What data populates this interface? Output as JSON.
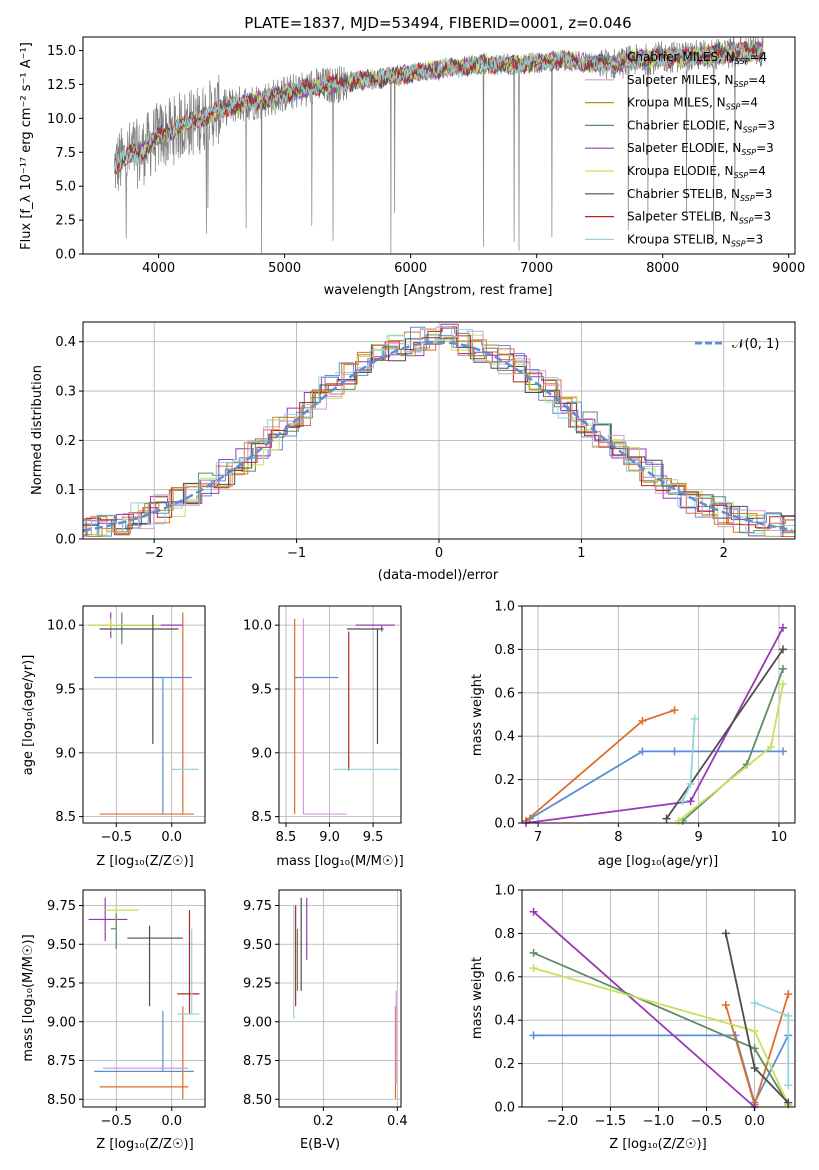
{
  "colors": {
    "grid": "#b0b0b0",
    "data_spectrum": "#808080",
    "palette": [
      "#5b8ed9",
      "#dd6f2c",
      "#9c38b8",
      "#5f8c62",
      "#c7e15a",
      "#4d4d4d",
      "#b82424",
      "#d89ad9",
      "#92d6da",
      "#c48a2a"
    ]
  },
  "chart_data": [
    {
      "id": "spectrum",
      "type": "line",
      "title": "PLATE=1837, MJD=53494, FIBERID=0001, z=0.046",
      "xlabel": "wavelength [Angstrom, rest frame]",
      "ylabel": "Flux [f_λ 10⁻¹⁷ erg cm⁻² s⁻¹ A⁻¹]",
      "xlim": [
        3400,
        9050
      ],
      "ylim": [
        0,
        16
      ],
      "xticks": [
        "4000",
        "5000",
        "6000",
        "7000",
        "8000",
        "9000"
      ],
      "yticks": [
        "0.0",
        "2.5",
        "5.0",
        "7.5",
        "10.0",
        "12.5",
        "15.0"
      ],
      "legend_position": "right",
      "grid": false,
      "legend": [
        {
          "label": "Chabrier MILES, N_SSP=4",
          "color": "#5b8ed9"
        },
        {
          "label": "Salpeter MILES, N_SSP=4",
          "color": "#d89ad9"
        },
        {
          "label": "Kroupa MILES, N_SSP=4",
          "color": "#c48a2a"
        },
        {
          "label": "Chabrier ELODIE, N_SSP=3",
          "color": "#5f8c62"
        },
        {
          "label": "Salpeter ELODIE, N_SSP=3",
          "color": "#9c38b8"
        },
        {
          "label": "Kroupa ELODIE, N_SSP=4",
          "color": "#c7e15a"
        },
        {
          "label": "Chabrier STELIB, N_SSP=3",
          "color": "#4d4d4d"
        },
        {
          "label": "Salpeter STELIB, N_SSP=3",
          "color": "#b82424"
        },
        {
          "label": "Kroupa STELIB, N_SSP=3",
          "color": "#92d6da"
        }
      ],
      "continuum": [
        [
          3650,
          6.5
        ],
        [
          3700,
          6.8
        ],
        [
          3750,
          7.2
        ],
        [
          3800,
          7.5
        ],
        [
          3850,
          7.3
        ],
        [
          3900,
          7.8
        ],
        [
          3950,
          8.3
        ],
        [
          4000,
          8.7
        ],
        [
          4100,
          9.0
        ],
        [
          4200,
          9.6
        ],
        [
          4300,
          9.8
        ],
        [
          4400,
          10.3
        ],
        [
          4500,
          10.7
        ],
        [
          4600,
          11.0
        ],
        [
          4800,
          11.3
        ],
        [
          5000,
          11.8
        ],
        [
          5200,
          12.3
        ],
        [
          5400,
          12.5
        ],
        [
          5600,
          12.8
        ],
        [
          5800,
          13.0
        ],
        [
          6000,
          13.3
        ],
        [
          6200,
          13.6
        ],
        [
          6400,
          13.8
        ],
        [
          6600,
          14.0
        ],
        [
          6800,
          14.0
        ],
        [
          7000,
          14.1
        ],
        [
          7200,
          14.3
        ],
        [
          7400,
          14.1
        ],
        [
          7600,
          14.0
        ],
        [
          7800,
          14.3
        ],
        [
          8000,
          14.5
        ],
        [
          8200,
          14.6
        ],
        [
          8400,
          14.7
        ],
        [
          8600,
          14.9
        ],
        [
          8800,
          15.0
        ]
      ]
    },
    {
      "id": "residuals",
      "type": "line",
      "xlabel": "(data-model)/error",
      "ylabel": "Normed distribution",
      "xlim": [
        -2.5,
        2.5
      ],
      "ylim": [
        0,
        0.44
      ],
      "xticks": [
        {
          "v": -2,
          "label": "−2"
        },
        {
          "v": -1,
          "label": "−1"
        },
        {
          "v": 0,
          "label": "0"
        },
        {
          "v": 1,
          "label": "1"
        },
        {
          "v": 2,
          "label": "2"
        }
      ],
      "yticks": [
        "0.0",
        "0.1",
        "0.2",
        "0.3",
        "0.4"
      ],
      "grid": true,
      "legend_label": "𝒩(0, 1)",
      "legend_position": "top-right",
      "gaussian_color": "#5b8ed9"
    },
    {
      "id": "age_vs_Z",
      "type": "scatter",
      "xlabel": "Z [log₁₀(Z/Z☉)]",
      "ylabel": "age  [log₁₀(age/yr)]",
      "xlim": [
        -0.8,
        0.3
      ],
      "ylim": [
        8.45,
        10.15
      ],
      "xticks": [
        {
          "v": -0.5,
          "label": "−0.5"
        },
        {
          "v": 0,
          "label": "0.0"
        }
      ],
      "yticks": [
        {
          "v": 8.5,
          "label": "8.5"
        },
        {
          "v": 9.0,
          "label": "9.0"
        },
        {
          "v": 9.5,
          "label": "9.5"
        },
        {
          "v": 10.0,
          "label": "10.0"
        }
      ],
      "grid": true,
      "points": [
        {
          "x": -0.08,
          "y": 9.59,
          "xlo": -0.7,
          "xhi": 0.18,
          "ylo": 8.52,
          "yhi": 9.59,
          "c": "#5b8ed9"
        },
        {
          "x": 0.1,
          "y": 8.52,
          "xlo": -0.65,
          "xhi": 0.2,
          "ylo": 8.52,
          "yhi": 10.1,
          "c": "#dd6f2c"
        },
        {
          "x": -0.55,
          "y": 10.0,
          "xlo": -0.75,
          "xhi": 0.1,
          "ylo": 9.9,
          "yhi": 10.1,
          "c": "#9c38b8"
        },
        {
          "x": -0.45,
          "y": 10.0,
          "xlo": -0.55,
          "xhi": -0.2,
          "ylo": 9.85,
          "yhi": 10.1,
          "c": "#5f8c62"
        },
        {
          "x": -0.55,
          "y": 10.0,
          "xlo": -0.75,
          "xhi": -0.1,
          "ylo": 9.95,
          "yhi": 10.05,
          "c": "#c7e15a"
        },
        {
          "x": -0.17,
          "y": 9.97,
          "xlo": -0.65,
          "xhi": 0.06,
          "ylo": 9.07,
          "yhi": 10.08,
          "c": "#4d4d4d"
        },
        {
          "x": 0.18,
          "y": 8.87,
          "xlo": 0.0,
          "xhi": 0.24,
          "ylo": 8.87,
          "yhi": 8.87,
          "c": "#92d6da"
        }
      ]
    },
    {
      "id": "age_vs_mass",
      "type": "scatter",
      "xlabel": "mass [log₁₀(M/M☉)]",
      "ylabel": "",
      "xlim": [
        8.42,
        9.82
      ],
      "ylim": [
        8.45,
        10.15
      ],
      "xticks": [
        {
          "v": 8.5,
          "label": "8.5"
        },
        {
          "v": 9.0,
          "label": "9.0"
        },
        {
          "v": 9.5,
          "label": "9.5"
        }
      ],
      "yticks": [
        {
          "v": 8.5,
          "label": "8.5"
        },
        {
          "v": 9.0,
          "label": "9.0"
        },
        {
          "v": 9.5,
          "label": "9.5"
        },
        {
          "v": 10.0,
          "label": "10.0"
        }
      ],
      "grid": true,
      "points": [
        {
          "x": 8.66,
          "y": 9.59,
          "xlo": 8.6,
          "xhi": 9.1,
          "ylo": 9.59,
          "yhi": 9.59,
          "c": "#5b8ed9"
        },
        {
          "x": 8.6,
          "y": 8.52,
          "xlo": 8.6,
          "xhi": 8.6,
          "ylo": 8.52,
          "yhi": 10.05,
          "c": "#dd6f2c"
        },
        {
          "x": 9.6,
          "y": 10.0,
          "xlo": 9.3,
          "xhi": 9.75,
          "ylo": 9.95,
          "yhi": 10.0,
          "c": "#9c38b8"
        },
        {
          "x": 9.55,
          "y": 9.97,
          "xlo": 9.2,
          "xhi": 9.62,
          "ylo": 9.07,
          "yhi": 9.97,
          "c": "#4d4d4d"
        },
        {
          "x": 9.22,
          "y": 8.86,
          "xlo": 9.22,
          "xhi": 9.22,
          "ylo": 8.86,
          "yhi": 9.95,
          "c": "#b82424"
        },
        {
          "x": 9.5,
          "y": 8.87,
          "xlo": 9.05,
          "xhi": 9.8,
          "ylo": 8.87,
          "yhi": 8.87,
          "c": "#92d6da"
        },
        {
          "x": 8.7,
          "y": 8.52,
          "xlo": 8.7,
          "xhi": 9.2,
          "ylo": 8.52,
          "yhi": 10.05,
          "c": "#d89ad9"
        }
      ]
    },
    {
      "id": "weight_vs_age",
      "type": "line",
      "xlabel": "age  [log₁₀(age/yr)]",
      "ylabel": "mass weight",
      "xlim": [
        6.8,
        10.2
      ],
      "ylim": [
        0,
        1
      ],
      "xticks": [
        {
          "v": 7,
          "label": "7"
        },
        {
          "v": 8,
          "label": "8"
        },
        {
          "v": 9,
          "label": "9"
        },
        {
          "v": 10,
          "label": "10"
        }
      ],
      "yticks": [
        {
          "v": 0,
          "label": "0.0"
        },
        {
          "v": 0.2,
          "label": "0.2"
        },
        {
          "v": 0.4,
          "label": "0.4"
        },
        {
          "v": 0.6,
          "label": "0.6"
        },
        {
          "v": 0.8,
          "label": "0.8"
        },
        {
          "v": 1.0,
          "label": "1.0"
        }
      ],
      "grid": true,
      "series": [
        {
          "c": "#5b8ed9",
          "x": [
            6.9,
            8.3,
            8.7,
            10.05
          ],
          "y": [
            0.02,
            0.33,
            0.33,
            0.33
          ]
        },
        {
          "c": "#dd6f2c",
          "x": [
            6.85,
            8.3,
            8.7
          ],
          "y": [
            0.01,
            0.47,
            0.52
          ]
        },
        {
          "c": "#9c38b8",
          "x": [
            6.85,
            8.9,
            10.05
          ],
          "y": [
            0.0,
            0.1,
            0.9
          ]
        },
        {
          "c": "#5f8c62",
          "x": [
            8.8,
            9.6,
            10.05
          ],
          "y": [
            0.01,
            0.27,
            0.71
          ]
        },
        {
          "c": "#c7e15a",
          "x": [
            8.75,
            9.9,
            10.05
          ],
          "y": [
            0.01,
            0.35,
            0.64
          ]
        },
        {
          "c": "#4d4d4d",
          "x": [
            8.6,
            10.05
          ],
          "y": [
            0.02,
            0.8
          ]
        },
        {
          "c": "#92d6da",
          "x": [
            8.8,
            8.9,
            8.95
          ],
          "y": [
            0.1,
            0.18,
            0.48
          ]
        }
      ]
    },
    {
      "id": "mass_vs_Z",
      "type": "scatter",
      "xlabel": "Z [log₁₀(Z/Z☉)]",
      "ylabel": "mass [log₁₀(M/M☉)]",
      "xlim": [
        -0.8,
        0.3
      ],
      "ylim": [
        8.45,
        9.85
      ],
      "xticks": [
        {
          "v": -0.5,
          "label": "−0.5"
        },
        {
          "v": 0,
          "label": "0.0"
        }
      ],
      "yticks": [
        {
          "v": 8.5,
          "label": "8.50"
        },
        {
          "v": 8.75,
          "label": "8.75"
        },
        {
          "v": 9.0,
          "label": "9.00"
        },
        {
          "v": 9.25,
          "label": "9.25"
        },
        {
          "v": 9.5,
          "label": "9.50"
        },
        {
          "v": 9.75,
          "label": "9.75"
        }
      ],
      "grid": true,
      "points": [
        {
          "x": -0.08,
          "y": 8.68,
          "xlo": -0.7,
          "xhi": 0.2,
          "ylo": 8.68,
          "yhi": 9.07,
          "c": "#5b8ed9"
        },
        {
          "x": 0.1,
          "y": 8.58,
          "xlo": -0.65,
          "xhi": 0.15,
          "ylo": 8.5,
          "yhi": 9.1,
          "c": "#dd6f2c"
        },
        {
          "x": -0.6,
          "y": 9.66,
          "xlo": -0.75,
          "xhi": -0.4,
          "ylo": 9.52,
          "yhi": 9.8,
          "c": "#9c38b8"
        },
        {
          "x": -0.5,
          "y": 9.72,
          "xlo": -0.6,
          "xhi": -0.3,
          "ylo": 9.6,
          "yhi": 9.75,
          "c": "#c7e15a"
        },
        {
          "x": -0.2,
          "y": 9.54,
          "xlo": -0.4,
          "xhi": 0.1,
          "ylo": 9.1,
          "yhi": 9.62,
          "c": "#4d4d4d"
        },
        {
          "x": 0.16,
          "y": 9.18,
          "xlo": 0.05,
          "xhi": 0.25,
          "ylo": 9.05,
          "yhi": 9.72,
          "c": "#b82424"
        },
        {
          "x": 0.18,
          "y": 9.05,
          "xlo": 0.05,
          "xhi": 0.25,
          "ylo": 9.05,
          "yhi": 9.6,
          "c": "#92d6da"
        },
        {
          "x": -0.5,
          "y": 9.6,
          "xlo": -0.55,
          "xhi": -0.5,
          "ylo": 9.47,
          "yhi": 9.7,
          "c": "#5f8c62"
        },
        {
          "x": -0.3,
          "y": 8.7,
          "xlo": -0.62,
          "xhi": 0.15,
          "ylo": 8.7,
          "yhi": 8.7,
          "c": "#d89ad9"
        }
      ]
    },
    {
      "id": "mass_vs_ebv",
      "type": "scatter",
      "xlabel": "E(B-V)",
      "ylabel": "",
      "xlim": [
        0.08,
        0.41
      ],
      "ylim": [
        8.45,
        9.85
      ],
      "xticks": [
        {
          "v": 0.2,
          "label": "0.2"
        },
        {
          "v": 0.4,
          "label": "0.4"
        }
      ],
      "yticks": [
        {
          "v": 8.5,
          "label": "8.50"
        },
        {
          "v": 8.75,
          "label": "8.75"
        },
        {
          "v": 9.0,
          "label": "9.00"
        },
        {
          "v": 9.25,
          "label": "9.25"
        },
        {
          "v": 9.5,
          "label": "9.50"
        },
        {
          "v": 9.75,
          "label": "9.75"
        }
      ],
      "grid": true,
      "points": [
        {
          "x": 0.12,
          "y": 9.4,
          "ylo": 9.02,
          "yhi": 9.75,
          "c": "#92d6da"
        },
        {
          "x": 0.125,
          "y": 9.5,
          "ylo": 9.1,
          "yhi": 9.75,
          "c": "#b82424"
        },
        {
          "x": 0.13,
          "y": 9.4,
          "ylo": 9.2,
          "yhi": 9.6,
          "c": "#5f8c62"
        },
        {
          "x": 0.14,
          "y": 9.5,
          "ylo": 9.2,
          "yhi": 9.8,
          "c": "#4d4d4d"
        },
        {
          "x": 0.155,
          "y": 9.6,
          "ylo": 9.4,
          "yhi": 9.8,
          "c": "#9c38b8"
        },
        {
          "x": 0.395,
          "y": 8.8,
          "ylo": 8.5,
          "yhi": 9.1,
          "c": "#dd6f2c"
        },
        {
          "x": 0.397,
          "y": 8.9,
          "ylo": 8.6,
          "yhi": 9.2,
          "c": "#d89ad9"
        }
      ]
    },
    {
      "id": "weight_vs_Z",
      "type": "line",
      "xlabel": "Z [log₁₀(Z/Z☉)]",
      "ylabel": "mass weight",
      "xlim": [
        -2.42,
        0.42
      ],
      "ylim": [
        0,
        1
      ],
      "xticks": [
        {
          "v": -2,
          "label": "−2.0"
        },
        {
          "v": -1.5,
          "label": "−1.5"
        },
        {
          "v": -1,
          "label": "−1.0"
        },
        {
          "v": -0.5,
          "label": "−0.5"
        },
        {
          "v": 0,
          "label": "0.0"
        }
      ],
      "yticks": [
        {
          "v": 0,
          "label": "0.0"
        },
        {
          "v": 0.2,
          "label": "0.2"
        },
        {
          "v": 0.4,
          "label": "0.4"
        },
        {
          "v": 0.6,
          "label": "0.6"
        },
        {
          "v": 0.8,
          "label": "0.8"
        },
        {
          "v": 1.0,
          "label": "1.0"
        }
      ],
      "grid": true,
      "series": [
        {
          "c": "#5b8ed9",
          "x": [
            -2.3,
            -0.2,
            0.0,
            0.35
          ],
          "y": [
            0.33,
            0.33,
            0.02,
            0.33
          ]
        },
        {
          "c": "#dd6f2c",
          "x": [
            -0.3,
            0.0,
            0.35
          ],
          "y": [
            0.47,
            0.01,
            0.52
          ]
        },
        {
          "c": "#9c38b8",
          "x": [
            -2.3,
            0.0
          ],
          "y": [
            0.9,
            0.0
          ]
        },
        {
          "c": "#5f8c62",
          "x": [
            -2.3,
            0.0,
            0.35
          ],
          "y": [
            0.71,
            0.27,
            0.01
          ]
        },
        {
          "c": "#c7e15a",
          "x": [
            -2.3,
            0.0,
            0.35
          ],
          "y": [
            0.64,
            0.35,
            0.01
          ]
        },
        {
          "c": "#4d4d4d",
          "x": [
            -0.3,
            0.0,
            0.35
          ],
          "y": [
            0.8,
            0.18,
            0.02
          ]
        },
        {
          "c": "#92d6da",
          "x": [
            0.0,
            0.35,
            0.35
          ],
          "y": [
            0.48,
            0.42,
            0.1
          ]
        }
      ]
    }
  ]
}
